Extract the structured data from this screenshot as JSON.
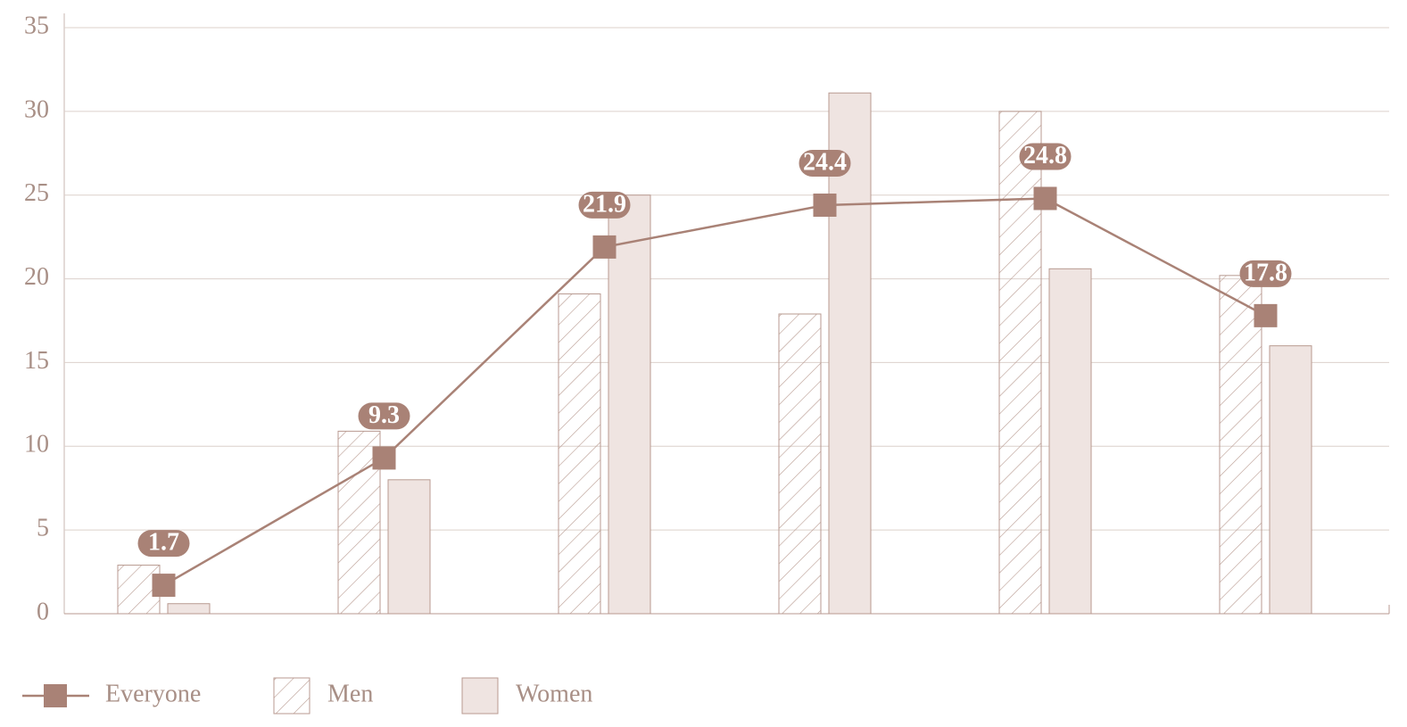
{
  "chart_data": {
    "type": "bar",
    "categories": [
      null,
      null,
      null,
      null,
      null,
      null
    ],
    "series": [
      {
        "name": "Everyone",
        "type": "line",
        "color": "#a98276",
        "values": [
          1.7,
          9.3,
          21.9,
          24.4,
          24.8,
          17.8
        ]
      },
      {
        "name": "Men",
        "type": "bar",
        "style": "hatched",
        "color": "#b89a90",
        "values": [
          2.9,
          10.9,
          19.1,
          17.9,
          30.0,
          20.2
        ]
      },
      {
        "name": "Women",
        "type": "bar",
        "style": "solid",
        "color": "#efe4e1",
        "values": [
          0.6,
          8.0,
          25.0,
          31.1,
          20.6,
          16.0
        ]
      }
    ],
    "ylim": [
      0,
      35
    ],
    "yticks": [
      0,
      5,
      10,
      15,
      20,
      25,
      30,
      35
    ],
    "grid": true,
    "legend": "bottom"
  }
}
